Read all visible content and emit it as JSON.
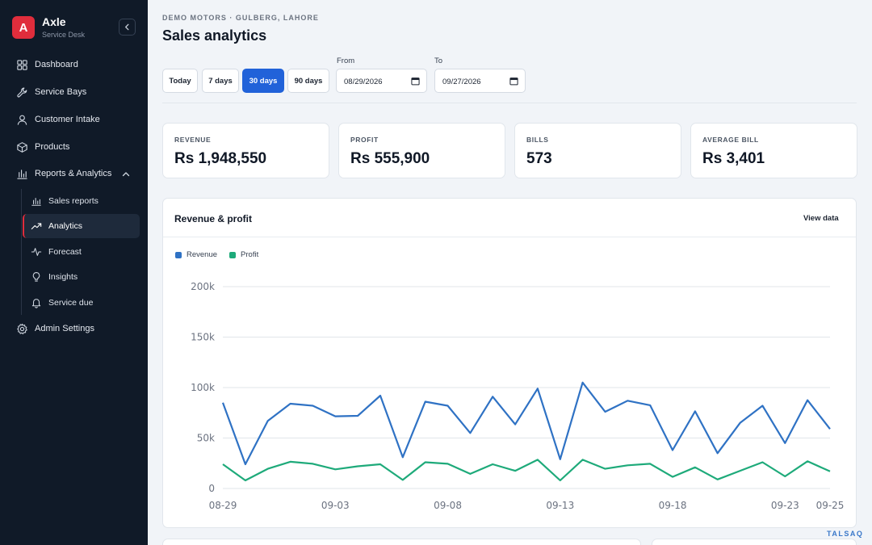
{
  "brand": {
    "logo_letter": "A",
    "name": "Axle",
    "subtitle": "Service Desk"
  },
  "sidebar": {
    "items": [
      {
        "label": "Dashboard",
        "icon": "grid-icon"
      },
      {
        "label": "Service Bays",
        "icon": "wrench-icon"
      },
      {
        "label": "Customer Intake",
        "icon": "user-icon"
      },
      {
        "label": "Products",
        "icon": "box-icon"
      },
      {
        "label": "Reports & Analytics",
        "icon": "bar-chart-icon",
        "expanded": true
      },
      {
        "label": "Admin Settings",
        "icon": "gear-icon"
      }
    ],
    "subitems": [
      {
        "label": "Sales reports",
        "icon": "bar-chart-icon"
      },
      {
        "label": "Analytics",
        "icon": "trending-up-icon",
        "active": true
      },
      {
        "label": "Forecast",
        "icon": "activity-icon"
      },
      {
        "label": "Insights",
        "icon": "lightbulb-icon"
      },
      {
        "label": "Service due",
        "icon": "bell-icon"
      }
    ]
  },
  "header": {
    "eyebrow": "DEMO MOTORS · GULBERG, LAHORE",
    "title": "Sales analytics"
  },
  "filters": {
    "ranges": [
      "Today",
      "7 days",
      "30 days",
      "90 days"
    ],
    "active_range": "30 days",
    "from_label": "From",
    "from_value": "08/29/2026",
    "to_label": "To",
    "to_value": "09/27/2026"
  },
  "kpis": [
    {
      "label": "REVENUE",
      "value": "Rs 1,948,550"
    },
    {
      "label": "PROFIT",
      "value": "Rs 555,900"
    },
    {
      "label": "BILLS",
      "value": "573"
    },
    {
      "label": "AVERAGE BILL",
      "value": "Rs 3,401"
    }
  ],
  "chart_card": {
    "title": "Revenue & profit",
    "view_data": "View data"
  },
  "colors": {
    "accent": "#2162d9",
    "brand": "#e02d3c",
    "revenue": "#2f72c4",
    "profit": "#1eaa7a"
  },
  "chart_data": {
    "type": "line",
    "x": [
      "08-29",
      "08-30",
      "08-31",
      "09-01",
      "09-02",
      "09-03",
      "09-04",
      "09-05",
      "09-06",
      "09-07",
      "09-08",
      "09-09",
      "09-10",
      "09-11",
      "09-12",
      "09-13",
      "09-14",
      "09-15",
      "09-16",
      "09-17",
      "09-18",
      "09-19",
      "09-20",
      "09-21",
      "09-22",
      "09-23",
      "09-24",
      "09-25"
    ],
    "x_ticks": [
      "08-29",
      "09-03",
      "09-08",
      "09-13",
      "09-18",
      "09-23",
      "09-25"
    ],
    "y_ticks": [
      "0",
      "50k",
      "100k",
      "150k",
      "200k"
    ],
    "ylim": [
      0,
      200000
    ],
    "grid": true,
    "legend_position": "top-left",
    "series": [
      {
        "name": "Revenue",
        "color": "#2f72c4",
        "values": [
          85000,
          24000,
          67000,
          84000,
          82000,
          71500,
          72000,
          92000,
          31000,
          86000,
          82000,
          55000,
          91000,
          63500,
          99000,
          29000,
          105000,
          76000,
          87000,
          82500,
          38000,
          76500,
          35000,
          65000,
          82000,
          45000,
          87500,
          59000
        ]
      },
      {
        "name": "Profit",
        "color": "#1eaa7a",
        "values": [
          24000,
          8000,
          19500,
          26500,
          24500,
          19000,
          22000,
          24000,
          8500,
          26000,
          24500,
          14500,
          24000,
          17500,
          28500,
          8000,
          28500,
          19500,
          23000,
          24500,
          11500,
          21000,
          9000,
          17500,
          26000,
          12000,
          27000,
          17000
        ]
      }
    ]
  },
  "watermark": "TALSAQ"
}
